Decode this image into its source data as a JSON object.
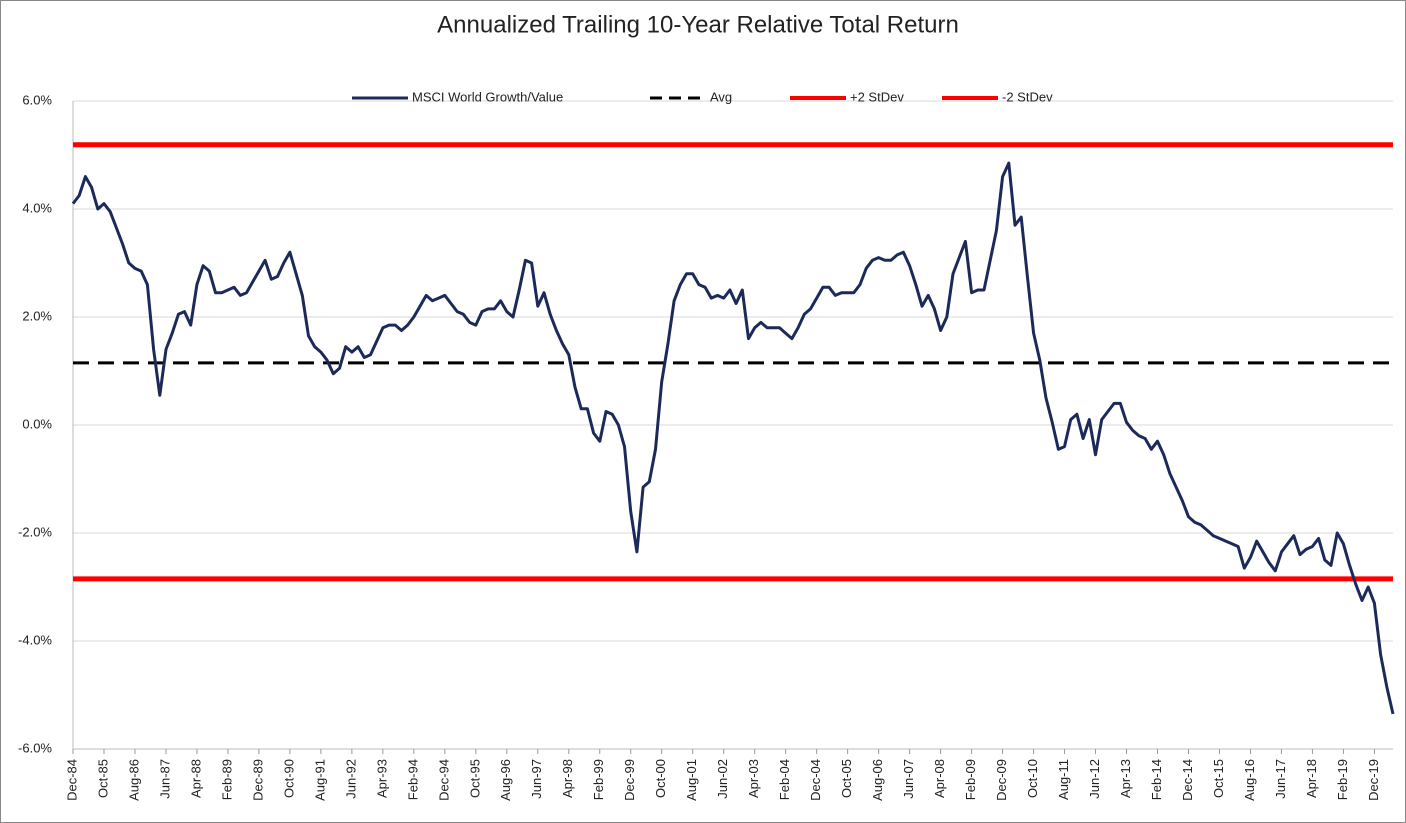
{
  "chart_data": {
    "type": "line",
    "title": "Annualized Trailing 10-Year Relative Total Return",
    "categories": [
      "Dec-84",
      null,
      null,
      null,
      null,
      "Oct-85",
      null,
      null,
      null,
      null,
      "Aug-86",
      null,
      null,
      null,
      null,
      "Jun-87",
      null,
      null,
      null,
      null,
      "Apr-88",
      null,
      null,
      null,
      null,
      "Feb-89",
      null,
      null,
      null,
      null,
      "Dec-89",
      null,
      null,
      null,
      null,
      "Oct-90",
      null,
      null,
      null,
      null,
      "Aug-91",
      null,
      null,
      null,
      null,
      "Jun-92",
      null,
      null,
      null,
      null,
      "Apr-93",
      null,
      null,
      null,
      null,
      "Feb-94",
      null,
      null,
      null,
      null,
      "Dec-94",
      null,
      null,
      null,
      null,
      "Oct-95",
      null,
      null,
      null,
      null,
      "Aug-96",
      null,
      null,
      null,
      null,
      "Jun-97",
      null,
      null,
      null,
      null,
      "Apr-98",
      null,
      null,
      null,
      null,
      "Feb-99",
      null,
      null,
      null,
      null,
      "Dec-99",
      null,
      null,
      null,
      null,
      "Oct-00",
      null,
      null,
      null,
      null,
      "Aug-01",
      null,
      null,
      null,
      null,
      "Jun-02",
      null,
      null,
      null,
      null,
      "Apr-03",
      null,
      null,
      null,
      null,
      "Feb-04",
      null,
      null,
      null,
      null,
      "Dec-04",
      null,
      null,
      null,
      null,
      "Oct-05",
      null,
      null,
      null,
      null,
      "Aug-06",
      null,
      null,
      null,
      null,
      "Jun-07",
      null,
      null,
      null,
      null,
      "Apr-08",
      null,
      null,
      null,
      null,
      "Feb-09",
      null,
      null,
      null,
      null,
      "Dec-09",
      null,
      null,
      null,
      null,
      "Oct-10",
      null,
      null,
      null,
      null,
      "Aug-11",
      null,
      null,
      null,
      null,
      "Jun-12",
      null,
      null,
      null,
      null,
      "Apr-13",
      null,
      null,
      null,
      null,
      "Feb-14",
      null,
      null,
      null,
      null,
      "Dec-14",
      null,
      null,
      null,
      null,
      "Oct-15",
      null,
      null,
      null,
      null,
      "Aug-16",
      null,
      null,
      null,
      null,
      "Jun-17",
      null,
      null,
      null,
      null,
      "Apr-18",
      null,
      null,
      null,
      null,
      "Feb-19",
      null,
      null,
      null,
      null,
      "Dec-19",
      null,
      null,
      null
    ],
    "series": [
      {
        "name": "MSCI World Growth/Value",
        "color": "#1c2a5a",
        "values": [
          4.1,
          4.25,
          4.6,
          4.4,
          4.0,
          4.1,
          3.95,
          3.65,
          3.35,
          3.0,
          2.9,
          2.85,
          2.6,
          1.4,
          0.55,
          1.4,
          1.7,
          2.05,
          2.1,
          1.85,
          2.6,
          2.95,
          2.85,
          2.45,
          2.45,
          2.5,
          2.55,
          2.4,
          2.45,
          2.65,
          2.85,
          3.05,
          2.7,
          2.75,
          3.0,
          3.2,
          2.8,
          2.4,
          1.65,
          1.45,
          1.35,
          1.2,
          0.95,
          1.05,
          1.45,
          1.35,
          1.45,
          1.25,
          1.3,
          1.55,
          1.8,
          1.85,
          1.85,
          1.75,
          1.85,
          2.0,
          2.2,
          2.4,
          2.3,
          2.35,
          2.4,
          2.25,
          2.1,
          2.05,
          1.9,
          1.85,
          2.1,
          2.15,
          2.15,
          2.3,
          2.1,
          2.0,
          2.5,
          3.05,
          3.0,
          2.2,
          2.45,
          2.05,
          1.75,
          1.5,
          1.3,
          0.7,
          0.3,
          0.3,
          -0.15,
          -0.3,
          0.25,
          0.2,
          0.0,
          -0.4,
          -1.6,
          -2.35,
          -1.15,
          -1.05,
          -0.45,
          0.8,
          1.5,
          2.3,
          2.6,
          2.8,
          2.8,
          2.6,
          2.55,
          2.35,
          2.4,
          2.35,
          2.5,
          2.25,
          2.5,
          1.6,
          1.8,
          1.9,
          1.8,
          1.8,
          1.8,
          1.7,
          1.6,
          1.8,
          2.05,
          2.15,
          2.35,
          2.55,
          2.55,
          2.4,
          2.45,
          2.45,
          2.45,
          2.6,
          2.9,
          3.05,
          3.1,
          3.05,
          3.05,
          3.15,
          3.2,
          2.95,
          2.6,
          2.2,
          2.4,
          2.15,
          1.75,
          2.0,
          2.8,
          3.1,
          3.4,
          2.45,
          2.5,
          2.5,
          3.05,
          3.6,
          4.6,
          4.85,
          3.7,
          3.85,
          2.75,
          1.7,
          1.2,
          0.5,
          0.05,
          -0.45,
          -0.4,
          0.1,
          0.2,
          -0.25,
          0.1,
          -0.55,
          0.1,
          0.25,
          0.4,
          0.4,
          0.05,
          -0.1,
          -0.2,
          -0.25,
          -0.45,
          -0.3,
          -0.55,
          -0.9,
          -1.15,
          -1.4,
          -1.7,
          -1.8,
          -1.85,
          -1.95,
          -2.05,
          -2.1,
          -2.15,
          -2.2,
          -2.25,
          -2.65,
          -2.45,
          -2.15,
          -2.35,
          -2.55,
          -2.7,
          -2.35,
          -2.2,
          -2.05,
          -2.4,
          -2.3,
          -2.25,
          -2.1,
          -2.5,
          -2.6,
          -2.0,
          -2.2,
          -2.6,
          -2.95,
          -3.25,
          -3.0,
          -3.3,
          -4.25,
          -4.85,
          -5.35
        ]
      }
    ],
    "hlines": [
      {
        "name": "Avg",
        "color": "#000000",
        "value": 1.15,
        "dashed": true
      },
      {
        "name": "+2 StDev",
        "color": "#ff0000",
        "value": 5.19,
        "dashed": false
      },
      {
        "name": "-2 StDev",
        "color": "#ff0000",
        "value": -2.85,
        "dashed": false
      }
    ],
    "ylim": [
      -6,
      6
    ],
    "yticks": [
      {
        "value": -6,
        "label": "-6.0%"
      },
      {
        "value": -4,
        "label": "-4.0%"
      },
      {
        "value": -2,
        "label": "-2.0%"
      },
      {
        "value": 0,
        "label": "0.0%"
      },
      {
        "value": 2,
        "label": "2.0%"
      },
      {
        "value": 4,
        "label": "4.0%"
      },
      {
        "value": 6,
        "label": "6.0%"
      }
    ],
    "grid": true,
    "legend": "top"
  }
}
